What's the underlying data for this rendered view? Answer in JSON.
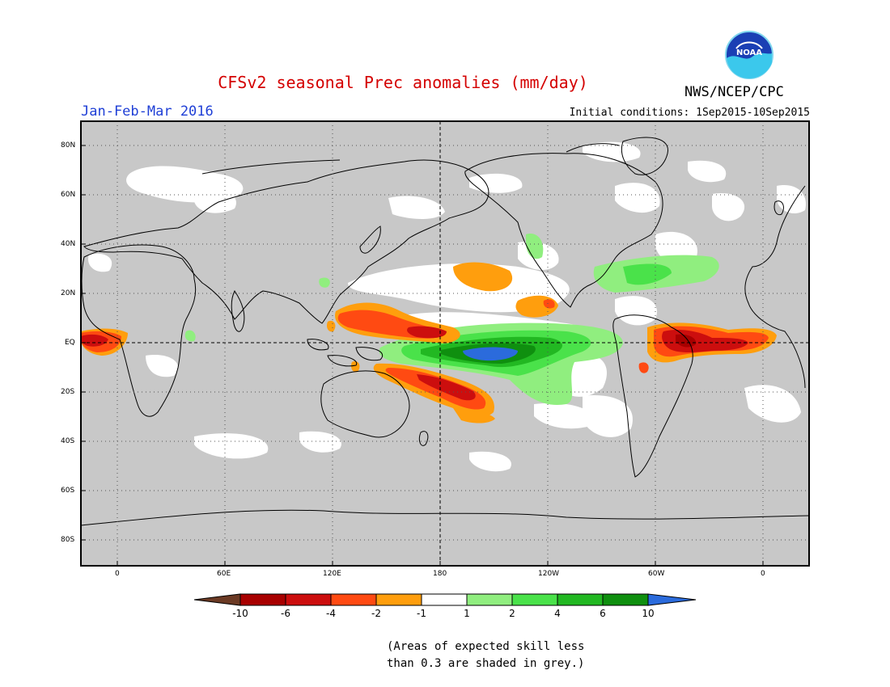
{
  "title": "CFSv2 seasonal Prec anomalies (mm/day)",
  "period": "Jan-Feb-Mar 2016",
  "initial_conditions": "Initial conditions: 1Sep2015-10Sep2015",
  "agency": "NWS/NCEP/CPC",
  "logo_text": "NOAA",
  "lat_ticks": [
    "80N",
    "60N",
    "40N",
    "20N",
    "EQ",
    "20S",
    "40S",
    "60S",
    "80S"
  ],
  "lon_ticks": [
    "0",
    "60E",
    "120E",
    "180",
    "120W",
    "60W",
    "0"
  ],
  "colorbar": {
    "labels": [
      "-10",
      "-6",
      "-4",
      "-2",
      "-1",
      "1",
      "2",
      "4",
      "6",
      "10"
    ],
    "colors": [
      "#6b3a24",
      "#a80000",
      "#cc0e0e",
      "#ff4a12",
      "#ff9e0d",
      "#ffffff",
      "#90ee7f",
      "#4ae24a",
      "#22b822",
      "#0f8f0f",
      "#2b6bdc"
    ]
  },
  "note_lines": [
    "(Areas of expected skill less",
    "than 0.3 are shaded in grey.)"
  ],
  "colors": {
    "title": "#d40000",
    "period": "#1f3fd6",
    "skill_mask": "#c8c8c8"
  }
}
